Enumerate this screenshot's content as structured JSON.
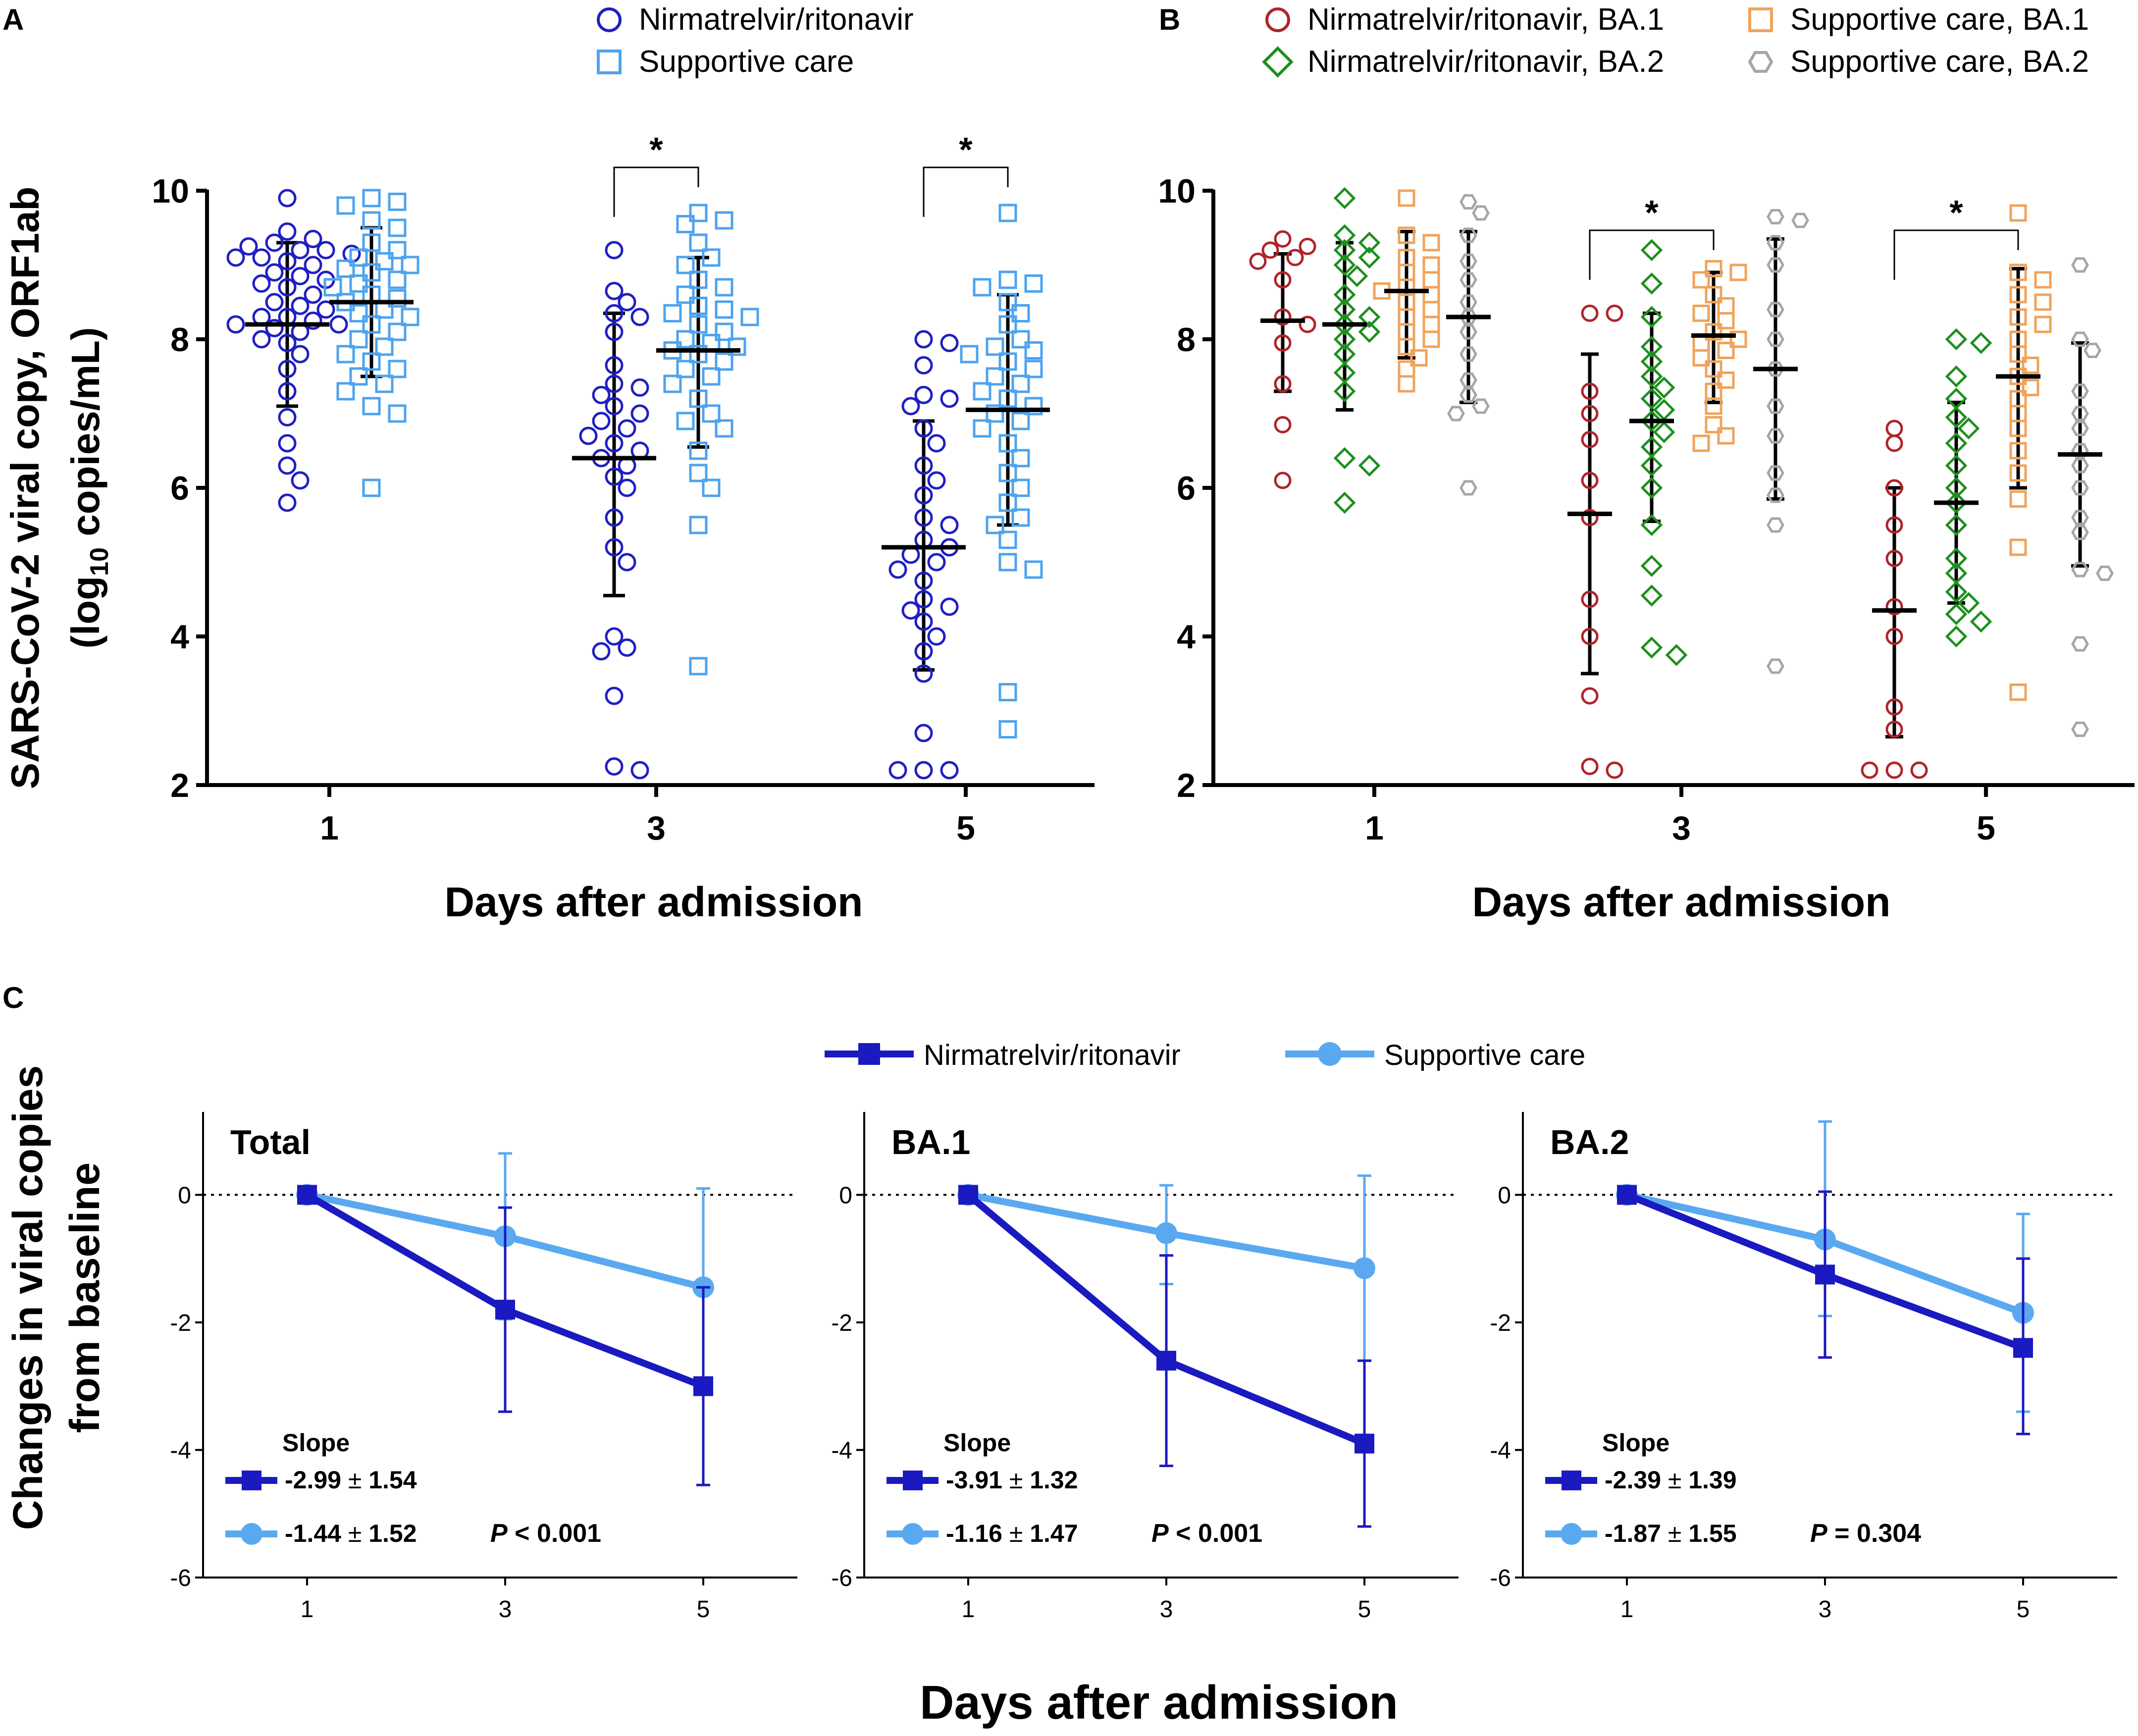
{
  "colors": {
    "nirmatrelvir": "#1f1fc2",
    "supportive": "#4da3ee",
    "nirm_ba1": "#b0232a",
    "nirm_ba2": "#1e8f1e",
    "supp_ba1": "#f0a35a",
    "supp_ba2": "#a6a6a6",
    "axis": "#000000",
    "line_nirm": "#1a1ac0",
    "line_supp": "#5aa9f0"
  },
  "chart_data": [
    {
      "panel_label": "A",
      "type": "scatter",
      "title": "",
      "ylabel_line1": "SARS-CoV-2 viral copy, ORF1ab",
      "ylabel_pre": "(log",
      "ylabel_sub": "10",
      "ylabel_post": " copies/mL)",
      "xlabel": "Days after admission",
      "categories": [
        "1",
        "3",
        "5"
      ],
      "ylim": [
        2,
        10
      ],
      "yticks": [
        "2",
        "4",
        "6",
        "8",
        "10"
      ],
      "legend": [
        {
          "name": "Nirmatrelvir/ritonavir",
          "marker": "circle",
          "color_key": "nirmatrelvir"
        },
        {
          "name": "Supportive care",
          "marker": "square",
          "color_key": "supportive"
        }
      ],
      "significance": [
        {
          "label": "*",
          "category_index": 1
        },
        {
          "label": "*",
          "category_index": 2
        }
      ],
      "series": [
        {
          "name": "Nirmatrelvir/ritonavir",
          "marker": "circle",
          "color_key": "nirmatrelvir",
          "groups": [
            {
              "mean": 8.2,
              "sd_low": 7.1,
              "sd_high": 9.3,
              "values": [
                9.9,
                9.45,
                9.35,
                9.3,
                9.25,
                9.2,
                9.2,
                9.15,
                9.1,
                9.1,
                9.05,
                9.0,
                8.9,
                8.85,
                8.8,
                8.75,
                8.7,
                8.6,
                8.5,
                8.45,
                8.4,
                8.3,
                8.3,
                8.25,
                8.2,
                8.2,
                8.15,
                8.1,
                8.0,
                7.95,
                7.8,
                7.6,
                7.3,
                6.95,
                6.6,
                6.3,
                6.1,
                5.8
              ]
            },
            {
              "mean": 6.4,
              "sd_low": 4.55,
              "sd_high": 8.35,
              "values": [
                9.2,
                8.65,
                8.5,
                8.35,
                8.3,
                8.1,
                7.65,
                7.4,
                7.35,
                7.25,
                7.1,
                7.0,
                6.9,
                6.8,
                6.7,
                6.6,
                6.5,
                6.4,
                6.3,
                6.15,
                6.0,
                5.6,
                5.2,
                5.0,
                4.0,
                3.85,
                3.8,
                3.2,
                2.25,
                2.2
              ]
            },
            {
              "mean": 5.2,
              "sd_low": 3.55,
              "sd_high": 6.9,
              "values": [
                8.0,
                7.95,
                7.65,
                7.25,
                7.2,
                7.1,
                6.8,
                6.6,
                6.3,
                6.1,
                5.9,
                5.6,
                5.5,
                5.3,
                5.2,
                5.1,
                5.0,
                4.9,
                4.75,
                4.5,
                4.4,
                4.35,
                4.2,
                4.0,
                3.8,
                3.5,
                2.7,
                2.2,
                2.2,
                2.2
              ]
            }
          ]
        },
        {
          "name": "Supportive care",
          "marker": "square",
          "color_key": "supportive",
          "groups": [
            {
              "mean": 8.5,
              "sd_low": 7.5,
              "sd_high": 9.5,
              "values": [
                9.9,
                9.85,
                9.8,
                9.6,
                9.5,
                9.3,
                9.2,
                9.1,
                9.05,
                9.0,
                8.95,
                8.9,
                8.8,
                8.75,
                8.7,
                8.6,
                8.55,
                8.5,
                8.4,
                8.35,
                8.3,
                8.2,
                8.1,
                8.0,
                7.9,
                7.8,
                7.7,
                7.6,
                7.5,
                7.4,
                7.3,
                7.1,
                7.0,
                6.0
              ]
            },
            {
              "mean": 7.85,
              "sd_low": 6.55,
              "sd_high": 9.1,
              "values": [
                9.7,
                9.6,
                9.55,
                9.3,
                9.1,
                9.0,
                8.8,
                8.7,
                8.6,
                8.45,
                8.4,
                8.35,
                8.3,
                8.2,
                8.1,
                8.0,
                7.95,
                7.9,
                7.85,
                7.8,
                7.7,
                7.6,
                7.5,
                7.4,
                7.2,
                7.0,
                6.9,
                6.8,
                6.5,
                6.2,
                6.0,
                5.5,
                3.6
              ]
            },
            {
              "mean": 7.05,
              "sd_low": 5.5,
              "sd_high": 8.6,
              "values": [
                9.7,
                8.8,
                8.75,
                8.7,
                8.5,
                8.35,
                8.2,
                8.0,
                7.9,
                7.85,
                7.8,
                7.7,
                7.6,
                7.5,
                7.4,
                7.3,
                7.2,
                7.1,
                7.0,
                6.9,
                6.8,
                6.6,
                6.4,
                6.2,
                6.0,
                5.8,
                5.6,
                5.5,
                5.3,
                5.0,
                4.9,
                3.25,
                2.75
              ]
            }
          ]
        }
      ]
    },
    {
      "panel_label": "B",
      "type": "scatter",
      "title": "",
      "xlabel": "Days after admission",
      "categories": [
        "1",
        "3",
        "5"
      ],
      "ylim": [
        2,
        10
      ],
      "yticks": [
        "2",
        "4",
        "6",
        "8",
        "10"
      ],
      "legend": [
        {
          "name": "Nirmatrelvir/ritonavir,  BA.1",
          "marker": "circle",
          "color_key": "nirm_ba1"
        },
        {
          "name": "Nirmatrelvir/ritonavir,  BA.2",
          "marker": "diamond",
          "color_key": "nirm_ba2"
        },
        {
          "name": "Supportive care, BA.1",
          "marker": "square",
          "color_key": "supp_ba1"
        },
        {
          "name": "Supportive care, BA.2",
          "marker": "hexagon",
          "color_key": "supp_ba2"
        }
      ],
      "significance": [
        {
          "label": "*",
          "category_index": 1
        },
        {
          "label": "*",
          "category_index": 2
        }
      ],
      "series": [
        {
          "name": "Nirmatrelvir/ritonavir, BA.1",
          "marker": "circle",
          "color_key": "nirm_ba1",
          "groups": [
            {
              "mean": 8.25,
              "sd_low": 7.3,
              "sd_high": 9.15,
              "values": [
                9.35,
                9.25,
                9.2,
                9.1,
                9.05,
                8.8,
                8.3,
                8.2,
                7.95,
                7.4,
                6.85,
                6.1
              ]
            },
            {
              "mean": 5.65,
              "sd_low": 3.5,
              "sd_high": 7.8,
              "values": [
                8.35,
                8.35,
                7.3,
                7.0,
                6.65,
                6.1,
                5.6,
                4.5,
                4.0,
                3.2,
                2.25,
                2.2
              ]
            },
            {
              "mean": 4.35,
              "sd_low": 2.65,
              "sd_high": 6.0,
              "values": [
                6.8,
                6.6,
                6.0,
                5.5,
                5.05,
                4.4,
                4.0,
                3.05,
                2.75,
                2.2,
                2.2,
                2.2
              ]
            }
          ]
        },
        {
          "name": "Nirmatrelvir/ritonavir, BA.2",
          "marker": "diamond",
          "color_key": "nirm_ba2",
          "groups": [
            {
              "mean": 8.2,
              "sd_low": 7.05,
              "sd_high": 9.3,
              "values": [
                9.9,
                9.4,
                9.3,
                9.2,
                9.1,
                9.0,
                8.85,
                8.6,
                8.4,
                8.3,
                8.2,
                8.1,
                8.0,
                7.8,
                7.55,
                7.3,
                6.4,
                6.3,
                5.8
              ]
            },
            {
              "mean": 6.9,
              "sd_low": 5.55,
              "sd_high": 8.35,
              "values": [
                9.2,
                8.75,
                8.3,
                7.9,
                7.7,
                7.5,
                7.35,
                7.2,
                7.05,
                6.9,
                6.75,
                6.55,
                6.3,
                6.0,
                5.5,
                4.95,
                4.55,
                3.85,
                3.75
              ]
            },
            {
              "mean": 5.8,
              "sd_low": 4.45,
              "sd_high": 7.15,
              "values": [
                8.0,
                7.95,
                7.5,
                7.2,
                6.95,
                6.8,
                6.6,
                6.3,
                6.0,
                5.8,
                5.5,
                5.05,
                4.85,
                4.6,
                4.45,
                4.3,
                4.2,
                4.0
              ]
            }
          ]
        },
        {
          "name": "Supportive care, BA.1",
          "marker": "square",
          "color_key": "supp_ba1",
          "groups": [
            {
              "mean": 8.65,
              "sd_low": 7.75,
              "sd_high": 9.45,
              "values": [
                9.9,
                9.4,
                9.3,
                9.1,
                9.0,
                8.9,
                8.8,
                8.7,
                8.65,
                8.6,
                8.5,
                8.4,
                8.3,
                8.2,
                8.1,
                8.0,
                7.9,
                7.75,
                7.6,
                7.4
              ]
            },
            {
              "mean": 8.05,
              "sd_low": 7.15,
              "sd_high": 8.9,
              "values": [
                8.95,
                8.9,
                8.8,
                8.6,
                8.45,
                8.35,
                8.25,
                8.1,
                8.0,
                7.95,
                7.85,
                7.75,
                7.6,
                7.45,
                7.3,
                7.1,
                6.85,
                6.7,
                6.6
              ]
            },
            {
              "mean": 7.5,
              "sd_low": 6.0,
              "sd_high": 8.95,
              "values": [
                9.7,
                8.9,
                8.8,
                8.6,
                8.5,
                8.3,
                8.2,
                8.0,
                7.8,
                7.65,
                7.5,
                7.35,
                7.2,
                7.0,
                6.8,
                6.5,
                6.2,
                5.85,
                5.2,
                3.25
              ]
            }
          ]
        },
        {
          "name": "Supportive care, BA.2",
          "marker": "hexagon",
          "color_key": "supp_ba2",
          "groups": [
            {
              "mean": 8.3,
              "sd_low": 7.15,
              "sd_high": 9.45,
              "values": [
                9.85,
                9.7,
                9.4,
                9.05,
                8.8,
                8.5,
                8.3,
                8.1,
                7.8,
                7.45,
                7.25,
                7.1,
                7.0,
                6.0
              ]
            },
            {
              "mean": 7.6,
              "sd_low": 5.85,
              "sd_high": 9.35,
              "values": [
                9.65,
                9.6,
                9.3,
                9.0,
                8.4,
                8.0,
                7.6,
                7.1,
                6.7,
                6.2,
                5.9,
                5.5,
                3.6
              ]
            },
            {
              "mean": 6.45,
              "sd_low": 4.95,
              "sd_high": 7.95,
              "values": [
                9.0,
                8.0,
                7.85,
                7.3,
                7.0,
                6.8,
                6.5,
                6.3,
                6.0,
                5.6,
                5.4,
                4.9,
                4.85,
                3.9,
                2.75
              ]
            }
          ]
        }
      ]
    },
    {
      "panel_label": "C",
      "type": "line",
      "title": "",
      "ylabel_line1": "Changes in viral copies",
      "ylabel_line2": "from baseline",
      "xlabel": "Days after admission",
      "x": [
        1,
        3,
        5
      ],
      "xticks": [
        "1",
        "3",
        "5"
      ],
      "ylim": [
        -6,
        1.3
      ],
      "yticks": [
        "-6",
        "-4",
        "-2",
        "0"
      ],
      "legend": [
        {
          "name": "Nirmatrelvir/ritonavir",
          "marker": "square",
          "color_key": "line_nirm"
        },
        {
          "name": "Supportive care",
          "marker": "circle",
          "color_key": "line_supp"
        }
      ],
      "slope_label": "Slope",
      "subplots": [
        {
          "title": "Total",
          "series": [
            {
              "name": "Nirmatrelvir/ritonavir",
              "marker": "square",
              "color_key": "line_nirm",
              "values": [
                0,
                -1.8,
                -3.0
              ],
              "err_low": [
                0,
                -3.4,
                -4.55
              ],
              "err_high": [
                0,
                -0.2,
                -1.45
              ],
              "slope": "-2.99",
              "slope_sd": "1.54"
            },
            {
              "name": "Supportive care",
              "marker": "circle",
              "color_key": "line_supp",
              "values": [
                0,
                -0.65,
                -1.45
              ],
              "err_low": [
                0,
                -1.95,
                -3.0
              ],
              "err_high": [
                0,
                0.65,
                0.1
              ],
              "slope": "-1.44",
              "slope_sd": "1.52"
            }
          ],
          "p_label": "P",
          "p_value": "< 0.001"
        },
        {
          "title": "BA.1",
          "series": [
            {
              "name": "Nirmatrelvir/ritonavir",
              "marker": "square",
              "color_key": "line_nirm",
              "values": [
                0,
                -2.6,
                -3.9
              ],
              "err_low": [
                0,
                -4.25,
                -5.2
              ],
              "err_high": [
                0,
                -0.95,
                -2.6
              ],
              "slope": "-3.91",
              "slope_sd": "1.32"
            },
            {
              "name": "Supportive care",
              "marker": "circle",
              "color_key": "line_supp",
              "values": [
                0,
                -0.6,
                -1.15
              ],
              "err_low": [
                0,
                -1.4,
                -2.6
              ],
              "err_high": [
                0,
                0.15,
                0.3
              ],
              "slope": "-1.16",
              "slope_sd": "1.47"
            }
          ],
          "p_label": "P",
          "p_value": "< 0.001"
        },
        {
          "title": "BA.2",
          "series": [
            {
              "name": "Nirmatrelvir/ritonavir",
              "marker": "square",
              "color_key": "line_nirm",
              "values": [
                0,
                -1.25,
                -2.4
              ],
              "err_low": [
                0,
                -2.55,
                -3.75
              ],
              "err_high": [
                0,
                0.05,
                -1.0
              ],
              "slope": "-2.39",
              "slope_sd": "1.39"
            },
            {
              "name": "Supportive care",
              "marker": "circle",
              "color_key": "line_supp",
              "values": [
                0,
                -0.7,
                -1.85
              ],
              "err_low": [
                0,
                -1.9,
                -3.4
              ],
              "err_high": [
                0,
                1.15,
                -0.3
              ],
              "slope": "-1.87",
              "slope_sd": "1.55"
            }
          ],
          "p_label": "P",
          "p_value": "= 0.304"
        }
      ]
    }
  ]
}
